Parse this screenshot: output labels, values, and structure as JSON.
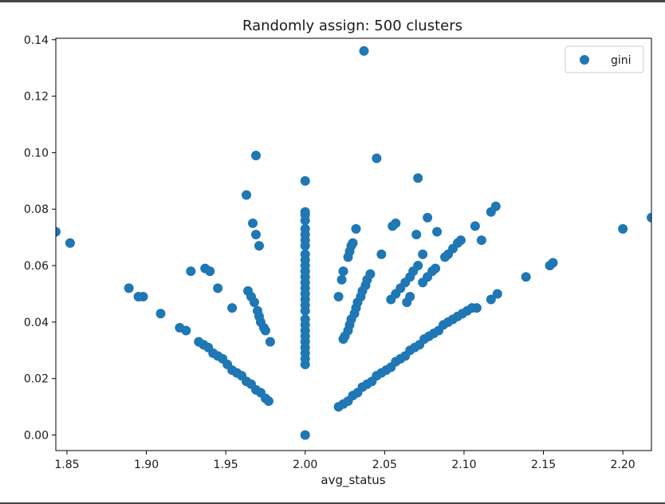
{
  "chart_data": {
    "type": "scatter",
    "title": "Randomly assign: 500 clusters",
    "xlabel": "avg_status",
    "ylabel": "",
    "xlim": [
      1.843,
      2.218
    ],
    "ylim": [
      -0.0055,
      0.1405
    ],
    "x_ticks": [
      1.85,
      1.9,
      1.95,
      2.0,
      2.05,
      2.1,
      2.15,
      2.2
    ],
    "x_tick_labels": [
      "1.85",
      "1.90",
      "1.95",
      "2.00",
      "2.05",
      "2.10",
      "2.15",
      "2.20"
    ],
    "y_ticks": [
      0.0,
      0.02,
      0.04,
      0.06,
      0.08,
      0.1,
      0.12,
      0.14
    ],
    "y_tick_labels": [
      "0.00",
      "0.02",
      "0.04",
      "0.06",
      "0.08",
      "0.10",
      "0.12",
      "0.14"
    ],
    "grid": false,
    "legend_position": "top-right",
    "series": [
      {
        "name": "gini",
        "color": "#1f77b4",
        "points": [
          [
            1.843,
            0.072
          ],
          [
            1.852,
            0.068
          ],
          [
            1.889,
            0.052
          ],
          [
            1.895,
            0.049
          ],
          [
            1.898,
            0.049
          ],
          [
            1.909,
            0.043
          ],
          [
            1.921,
            0.038
          ],
          [
            1.925,
            0.037
          ],
          [
            1.928,
            0.058
          ],
          [
            1.933,
            0.033
          ],
          [
            1.936,
            0.032
          ],
          [
            1.939,
            0.031
          ],
          [
            1.942,
            0.029
          ],
          [
            1.945,
            0.028
          ],
          [
            1.948,
            0.027
          ],
          [
            1.951,
            0.025
          ],
          [
            1.954,
            0.023
          ],
          [
            1.957,
            0.022
          ],
          [
            1.96,
            0.021
          ],
          [
            1.963,
            0.019
          ],
          [
            1.966,
            0.018
          ],
          [
            1.969,
            0.016
          ],
          [
            1.972,
            0.015
          ],
          [
            1.975,
            0.013
          ],
          [
            1.977,
            0.012
          ],
          [
            1.937,
            0.059
          ],
          [
            1.94,
            0.058
          ],
          [
            1.945,
            0.052
          ],
          [
            1.954,
            0.045
          ],
          [
            1.963,
            0.085
          ],
          [
            1.967,
            0.075
          ],
          [
            1.969,
            0.071
          ],
          [
            1.969,
            0.099
          ],
          [
            1.971,
            0.067
          ],
          [
            1.964,
            0.051
          ],
          [
            1.966,
            0.049
          ],
          [
            1.968,
            0.047
          ],
          [
            1.97,
            0.044
          ],
          [
            1.971,
            0.042
          ],
          [
            1.972,
            0.04
          ],
          [
            1.974,
            0.038
          ],
          [
            1.975,
            0.037
          ],
          [
            1.978,
            0.033
          ],
          [
            2.0,
            0.09
          ],
          [
            2.0,
            0.079
          ],
          [
            2.0,
            0.078
          ],
          [
            2.0,
            0.076
          ],
          [
            2.0,
            0.073
          ],
          [
            2.0,
            0.071
          ],
          [
            2.0,
            0.069
          ],
          [
            2.0,
            0.067
          ],
          [
            2.0,
            0.064
          ],
          [
            2.0,
            0.062
          ],
          [
            2.0,
            0.06
          ],
          [
            2.0,
            0.058
          ],
          [
            2.0,
            0.056
          ],
          [
            2.0,
            0.054
          ],
          [
            2.0,
            0.052
          ],
          [
            2.0,
            0.05
          ],
          [
            2.0,
            0.048
          ],
          [
            2.0,
            0.046
          ],
          [
            2.0,
            0.044
          ],
          [
            2.0,
            0.041
          ],
          [
            2.0,
            0.039
          ],
          [
            2.0,
            0.037
          ],
          [
            2.0,
            0.035
          ],
          [
            2.0,
            0.033
          ],
          [
            2.0,
            0.031
          ],
          [
            2.0,
            0.029
          ],
          [
            2.0,
            0.027
          ],
          [
            2.0,
            0.025
          ],
          [
            2.0,
            0.0
          ],
          [
            2.021,
            0.049
          ],
          [
            2.023,
            0.055
          ],
          [
            2.024,
            0.058
          ],
          [
            2.027,
            0.063
          ],
          [
            2.028,
            0.065
          ],
          [
            2.029,
            0.067
          ],
          [
            2.03,
            0.068
          ],
          [
            2.032,
            0.073
          ],
          [
            2.024,
            0.034
          ],
          [
            2.025,
            0.035
          ],
          [
            2.027,
            0.037
          ],
          [
            2.028,
            0.039
          ],
          [
            2.029,
            0.041
          ],
          [
            2.031,
            0.043
          ],
          [
            2.032,
            0.045
          ],
          [
            2.033,
            0.047
          ],
          [
            2.035,
            0.049
          ],
          [
            2.036,
            0.051
          ],
          [
            2.038,
            0.053
          ],
          [
            2.039,
            0.055
          ],
          [
            2.041,
            0.057
          ],
          [
            2.037,
            0.136
          ],
          [
            2.045,
            0.098
          ],
          [
            2.048,
            0.064
          ],
          [
            2.055,
            0.074
          ],
          [
            2.057,
            0.075
          ],
          [
            2.071,
            0.091
          ],
          [
            2.077,
            0.077
          ],
          [
            2.07,
            0.071
          ],
          [
            2.074,
            0.064
          ],
          [
            2.083,
            0.072
          ],
          [
            2.054,
            0.048
          ],
          [
            2.057,
            0.05
          ],
          [
            2.06,
            0.052
          ],
          [
            2.063,
            0.054
          ],
          [
            2.066,
            0.056
          ],
          [
            2.068,
            0.058
          ],
          [
            2.071,
            0.06
          ],
          [
            2.064,
            0.047
          ],
          [
            2.066,
            0.049
          ],
          [
            2.074,
            0.054
          ],
          [
            2.077,
            0.056
          ],
          [
            2.08,
            0.058
          ],
          [
            2.082,
            0.059
          ],
          [
            2.088,
            0.063
          ],
          [
            2.09,
            0.064
          ],
          [
            2.093,
            0.066
          ],
          [
            2.096,
            0.068
          ],
          [
            2.098,
            0.069
          ],
          [
            2.107,
            0.074
          ],
          [
            2.111,
            0.069
          ],
          [
            2.117,
            0.079
          ],
          [
            2.12,
            0.081
          ],
          [
            2.021,
            0.01
          ],
          [
            2.024,
            0.011
          ],
          [
            2.027,
            0.012
          ],
          [
            2.03,
            0.014
          ],
          [
            2.033,
            0.015
          ],
          [
            2.036,
            0.017
          ],
          [
            2.039,
            0.018
          ],
          [
            2.042,
            0.019
          ],
          [
            2.045,
            0.021
          ],
          [
            2.048,
            0.022
          ],
          [
            2.051,
            0.023
          ],
          [
            2.054,
            0.024
          ],
          [
            2.057,
            0.026
          ],
          [
            2.06,
            0.027
          ],
          [
            2.063,
            0.028
          ],
          [
            2.066,
            0.03
          ],
          [
            2.069,
            0.031
          ],
          [
            2.072,
            0.032
          ],
          [
            2.075,
            0.034
          ],
          [
            2.078,
            0.035
          ],
          [
            2.081,
            0.036
          ],
          [
            2.084,
            0.037
          ],
          [
            2.087,
            0.039
          ],
          [
            2.09,
            0.04
          ],
          [
            2.093,
            0.041
          ],
          [
            2.096,
            0.042
          ],
          [
            2.099,
            0.043
          ],
          [
            2.102,
            0.044
          ],
          [
            2.105,
            0.045
          ],
          [
            2.108,
            0.045
          ],
          [
            2.117,
            0.048
          ],
          [
            2.121,
            0.05
          ],
          [
            2.139,
            0.056
          ],
          [
            2.154,
            0.06
          ],
          [
            2.156,
            0.061
          ],
          [
            2.2,
            0.073
          ],
          [
            2.218,
            0.077
          ]
        ]
      }
    ]
  }
}
